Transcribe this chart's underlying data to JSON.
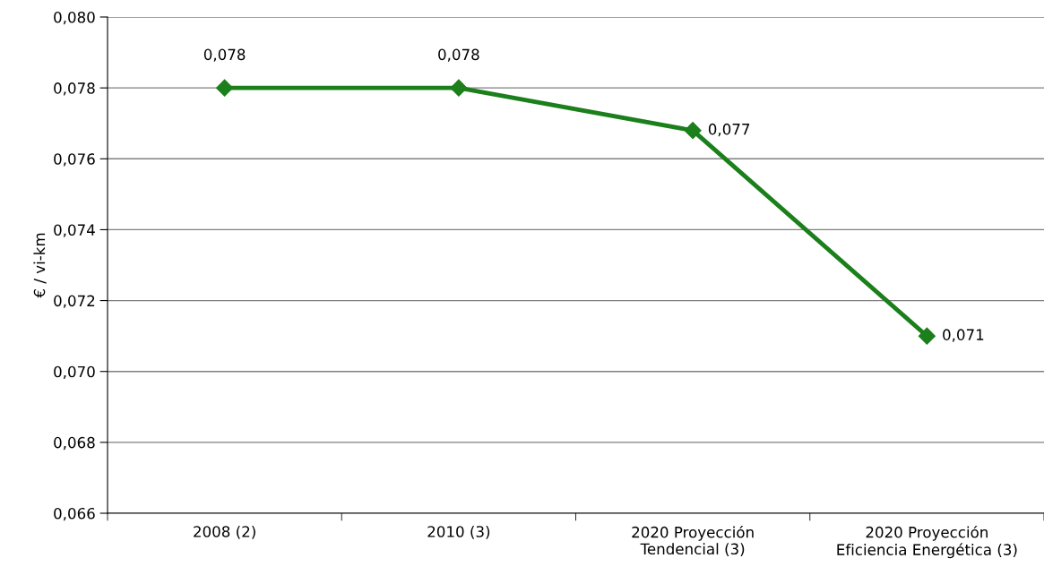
{
  "chart_data": {
    "type": "line",
    "ylabel": "€ / vi-km",
    "categories": [
      "2008 (2)",
      "2010 (3)",
      "2020 Proyección\nTendencial (3)",
      "2020 Proyección\nEficiencia Energética (3)"
    ],
    "series": [
      {
        "color": "#1b7f1b",
        "values": [
          0.078,
          0.078,
          0.0768,
          0.071
        ],
        "value_labels": [
          "0,078",
          "0,078",
          "0,077",
          "0,071"
        ]
      }
    ],
    "ylim": [
      0.066,
      0.08
    ],
    "yticks": [
      {
        "value": 0.066,
        "label": "0,066"
      },
      {
        "value": 0.068,
        "label": "0,068"
      },
      {
        "value": 0.07,
        "label": "0,070"
      },
      {
        "value": 0.072,
        "label": "0,072"
      },
      {
        "value": 0.074,
        "label": "0,074"
      },
      {
        "value": 0.076,
        "label": "0,076"
      },
      {
        "value": 0.078,
        "label": "0,078"
      },
      {
        "value": 0.08,
        "label": "0,080"
      }
    ],
    "grid": "y",
    "marker": "diamond",
    "line_style": "solid",
    "legend": false
  }
}
